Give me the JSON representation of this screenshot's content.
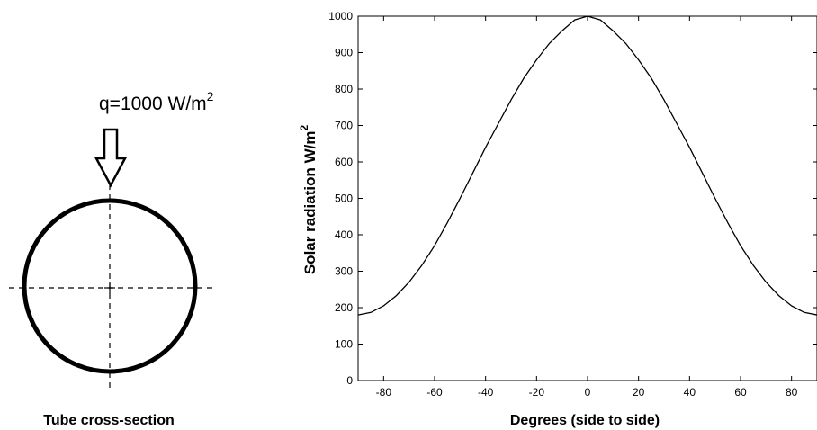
{
  "diagram": {
    "flux_text": "q=1000 W/m",
    "flux_superscript": "2",
    "caption": "Tube cross-section"
  },
  "chart_data": {
    "type": "line",
    "title": "",
    "xlabel": "Degrees (side to side)",
    "ylabel_main": "Solar radiation W/m",
    "ylabel_superscript": "2",
    "xlim": [
      -90,
      90
    ],
    "ylim": [
      0,
      1000
    ],
    "xticks": [
      -80,
      -60,
      -40,
      -20,
      0,
      20,
      40,
      60,
      80
    ],
    "yticks": [
      0,
      100,
      200,
      300,
      400,
      500,
      600,
      700,
      800,
      900,
      1000
    ],
    "grid": false,
    "series": [
      {
        "x": [
          -90,
          -85,
          -80,
          -75,
          -70,
          -65,
          -60,
          -55,
          -50,
          -45,
          -40,
          -35,
          -30,
          -25,
          -20,
          -15,
          -10,
          -5,
          0,
          5,
          10,
          15,
          20,
          25,
          30,
          35,
          40,
          45,
          50,
          55,
          60,
          65,
          70,
          75,
          80,
          85,
          90
        ],
        "y": [
          180,
          187,
          205,
          233,
          270,
          316,
          370,
          433,
          500,
          570,
          640,
          705,
          770,
          830,
          880,
          925,
          960,
          990,
          1000,
          990,
          960,
          925,
          880,
          830,
          770,
          705,
          640,
          570,
          500,
          433,
          370,
          316,
          270,
          233,
          205,
          187,
          180
        ]
      }
    ]
  }
}
